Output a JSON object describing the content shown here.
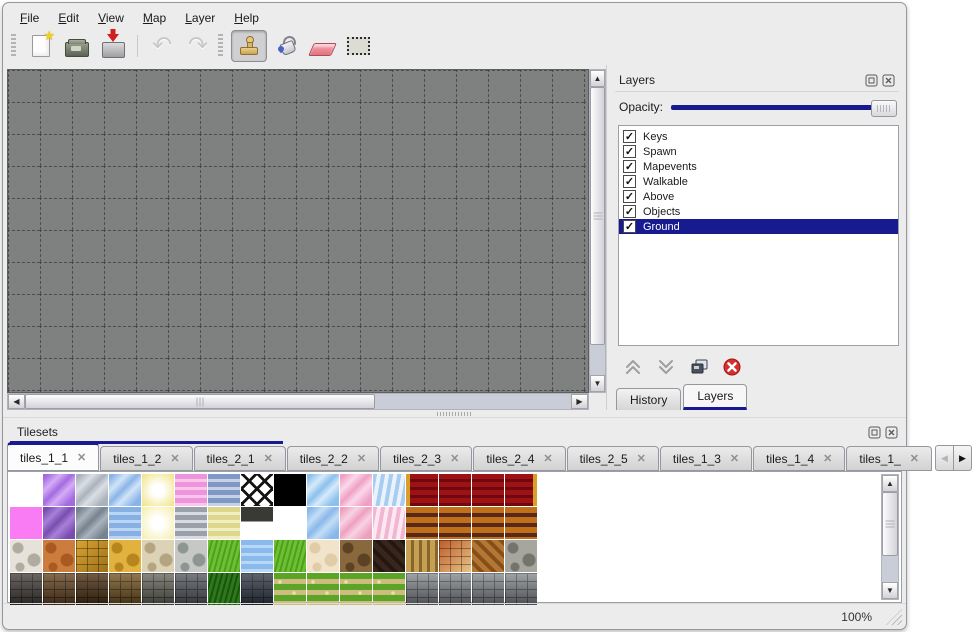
{
  "colors": {
    "accent": "#171b8f",
    "canvas_background": "#7f8080",
    "grid_line": "#4c4c4c",
    "selection_background": "#171b8f",
    "selection_text": "#ffffff"
  },
  "menu": {
    "items": [
      "File",
      "Edit",
      "View",
      "Map",
      "Layer",
      "Help"
    ]
  },
  "toolbar": {
    "buttons": [
      {
        "name": "new-map-button",
        "icon": "new-file-icon",
        "state": "enabled"
      },
      {
        "name": "open-button",
        "icon": "open-folder-icon",
        "state": "enabled"
      },
      {
        "name": "save-button",
        "icon": "save-icon",
        "state": "enabled"
      },
      {
        "name": "undo-button",
        "icon": "undo-arrow-icon",
        "state": "disabled"
      },
      {
        "name": "redo-button",
        "icon": "redo-arrow-icon",
        "state": "disabled"
      },
      {
        "name": "stamp-tool-button",
        "icon": "stamp-icon",
        "state": "selected"
      },
      {
        "name": "fill-tool-button",
        "icon": "paint-bucket-icon",
        "state": "enabled"
      },
      {
        "name": "eraser-tool-button",
        "icon": "eraser-icon",
        "state": "enabled"
      },
      {
        "name": "select-tool-button",
        "icon": "rect-select-icon",
        "state": "enabled"
      }
    ]
  },
  "layers_panel": {
    "title": "Layers",
    "opacity_label": "Opacity:",
    "opacity_percent": 100,
    "layers": [
      {
        "name": "Keys",
        "checked": true,
        "selected": false
      },
      {
        "name": "Spawn",
        "checked": true,
        "selected": false
      },
      {
        "name": "Mapevents",
        "checked": true,
        "selected": false
      },
      {
        "name": "Walkable",
        "checked": true,
        "selected": false
      },
      {
        "name": "Above",
        "checked": true,
        "selected": false
      },
      {
        "name": "Objects",
        "checked": true,
        "selected": false
      },
      {
        "name": "Ground",
        "checked": true,
        "selected": true
      }
    ],
    "buttons": [
      "move-layer-up",
      "move-layer-down",
      "duplicate-layer",
      "delete-layer"
    ],
    "tabs": [
      {
        "label": "History",
        "active": false
      },
      {
        "label": "Layers",
        "active": true
      }
    ]
  },
  "tilesets_panel": {
    "title": "Tilesets",
    "tabs": [
      {
        "label": "tiles_1_1",
        "active": true,
        "truncated": false
      },
      {
        "label": "tiles_1_2",
        "active": false,
        "truncated": false
      },
      {
        "label": "tiles_2_1",
        "active": false,
        "truncated": false
      },
      {
        "label": "tiles_2_2",
        "active": false,
        "truncated": false
      },
      {
        "label": "tiles_2_3",
        "active": false,
        "truncated": false
      },
      {
        "label": "tiles_2_4",
        "active": false,
        "truncated": false
      },
      {
        "label": "tiles_2_5",
        "active": false,
        "truncated": false
      },
      {
        "label": "tiles_1_3",
        "active": false,
        "truncated": false
      },
      {
        "label": "tiles_1_4",
        "active": false,
        "truncated": false
      },
      {
        "label": "tiles_1_",
        "active": false,
        "truncated": true
      }
    ]
  },
  "palette": {
    "rows": [
      [
        [
          "empty",
          "solid",
          "#ffffff"
        ],
        [
          "purple-glass",
          "glass",
          "#a46ae0",
          "#d4acf6"
        ],
        [
          "gray-glass",
          "glass",
          "#aab2bc",
          "#dadfe4"
        ],
        [
          "blue-glass",
          "glass",
          "#8ab4e8",
          "#d2e4f7"
        ],
        [
          "yellow-glow",
          "glow",
          "#f2e488"
        ],
        [
          "pink-stripes",
          "hstripes",
          "#ef93dc",
          "#f8c8ec"
        ],
        [
          "blue-stripes",
          "hstripes",
          "#8098c4",
          "#c8d2e6"
        ],
        [
          "lattice",
          "lattice",
          "#ffffff",
          "#141414"
        ],
        [
          "black",
          "solid",
          "#000000"
        ],
        [
          "lightblue-glass",
          "glass",
          "#8cc0ec",
          "#d6eafa"
        ],
        [
          "pink-glass",
          "glass",
          "#f0a0c4",
          "#fad8ea"
        ],
        [
          "blue-drape",
          "drape",
          "#a8cdf0",
          "#eaf3fc"
        ],
        [
          "red-carpet-left",
          "carpet-l",
          "#9e1216",
          "#d8a028"
        ],
        [
          "red-carpet",
          "carpet-m",
          "#9e1216",
          "#6e0a0e"
        ],
        [
          "red-carpet",
          "carpet-m",
          "#9e1216",
          "#6e0a0e"
        ],
        [
          "red-carpet-right",
          "carpet-r",
          "#9e1216",
          "#d8a028"
        ]
      ],
      [
        [
          "magenta",
          "solid",
          "#f97cf4"
        ],
        [
          "purple-glass-dark",
          "glass",
          "#7a4cb0",
          "#a781d8"
        ],
        [
          "gray-glass-dark",
          "glass",
          "#76828e",
          "#a9b3bd"
        ],
        [
          "water-ripple",
          "hstripes",
          "#86b0e4",
          "#b9d5f2"
        ],
        [
          "pale-yellow-glow",
          "glow",
          "#f6efae"
        ],
        [
          "gray-stripes",
          "hstripes",
          "#9aa0aa",
          "#d8dce2"
        ],
        [
          "yellow-stripes",
          "hstripes",
          "#ddd78c",
          "#f2eec4"
        ],
        [
          "wood-sign",
          "sign",
          "#3a3a34",
          "#ffffff"
        ],
        [
          "empty",
          "solid",
          "#ffffff"
        ],
        [
          "blue-glass-small",
          "glass",
          "#88b8ea",
          "#c4ddf6"
        ],
        [
          "pink-glass-small",
          "glass",
          "#eea0c0",
          "#f8d2e3"
        ],
        [
          "pink-drape",
          "drape",
          "#f2b6d2",
          "#fce8f1"
        ],
        [
          "wood-beams",
          "wstripes",
          "#c07018",
          "#58281c"
        ],
        [
          "wood-beams",
          "wstripes",
          "#c07018",
          "#58281c"
        ],
        [
          "wood-beams",
          "wstripes",
          "#c07018",
          "#58281c"
        ],
        [
          "wood-beams",
          "wstripes",
          "#c07018",
          "#58281c"
        ]
      ],
      [
        [
          "stone-path-white",
          "stones",
          "#e6e2da",
          "#b0aca0"
        ],
        [
          "orange-stone",
          "stones",
          "#cc7c3c",
          "#a85a22"
        ],
        [
          "gold-tiles",
          "bricks",
          "#d9a433",
          "#9c701a"
        ],
        [
          "gold-stones",
          "stones",
          "#e2b23e",
          "#b8841e"
        ],
        [
          "beige-pebbles",
          "stones",
          "#dcd2b6",
          "#b4a480"
        ],
        [
          "gray-stones",
          "stones",
          "#c6c8c6",
          "#8e9694"
        ],
        [
          "grass",
          "grass",
          "#6cc032",
          "#4f9f1f"
        ],
        [
          "water",
          "hstripes",
          "#8abaec",
          "#b6d8f6"
        ],
        [
          "grass",
          "grass",
          "#6cc032",
          "#4f9f1f"
        ],
        [
          "sand",
          "stones",
          "#f2e4ca",
          "#e0cda8"
        ],
        [
          "dirt-debris",
          "stones",
          "#8a683e",
          "#5c4224"
        ],
        [
          "dark-planks",
          "diag",
          "#38261c",
          "#241610"
        ],
        [
          "wood-planks-vertical",
          "vstripes",
          "#c4a050",
          "#86662c"
        ],
        [
          "brick-weave",
          "bricks",
          "#c05a28",
          "#e6c488"
        ],
        [
          "herringbone-wood",
          "diag",
          "#b47634",
          "#845018"
        ],
        [
          "log-ends",
          "stones",
          "#a6a69e",
          "#74746c"
        ]
      ],
      [
        [
          "brick-wall-dark",
          "wall",
          "#4a4540",
          "#262220"
        ],
        [
          "brick-wall-brown",
          "wall",
          "#6c4a28",
          "#362412"
        ],
        [
          "brick-wall-darkbrown",
          "wall",
          "#523618",
          "#2a1b0a"
        ],
        [
          "brick-wall-tan",
          "wall",
          "#7a5a26",
          "#423010"
        ],
        [
          "stone-wall-gray",
          "wall",
          "#6e6e64",
          "#3c3c34"
        ],
        [
          "brick-wall-gray",
          "wall",
          "#5c6066",
          "#30343a"
        ],
        [
          "hedge",
          "grass",
          "#2c781c",
          "#1a520e"
        ],
        [
          "brick-wall-blue",
          "wall",
          "#38424e",
          "#1c242c"
        ],
        [
          "grass-path-flowers",
          "flowers",
          "#5aa428",
          "#cdbc7e"
        ],
        [
          "grass-path-flowers",
          "flowers",
          "#5aa428",
          "#cdbc7e"
        ],
        [
          "grass-path-flowers",
          "flowers",
          "#5aa428",
          "#cdbc7e"
        ],
        [
          "grass-path-flowers",
          "flowers",
          "#5aa428",
          "#cdbc7e"
        ],
        [
          "plank-wall-gray",
          "wall",
          "#8c9094",
          "#54585c"
        ],
        [
          "plank-wall-gray",
          "wall",
          "#8c9094",
          "#54585c"
        ],
        [
          "plank-wall-gray",
          "wall",
          "#8c9094",
          "#54585c"
        ],
        [
          "plank-wall-gray",
          "wall",
          "#8c9094",
          "#54585c"
        ]
      ]
    ]
  },
  "statusbar": {
    "zoom_level": "100%"
  }
}
